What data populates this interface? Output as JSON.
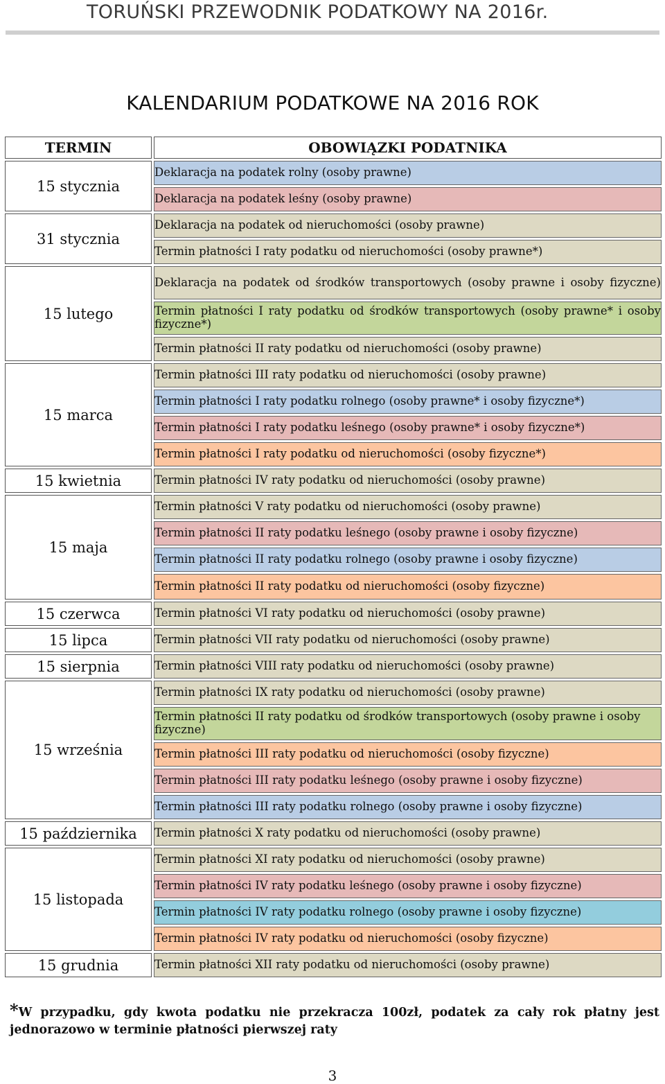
{
  "header": {
    "text": "TORUŃSKI PRZEWODNIK PODATKOWY NA 2016r."
  },
  "title": "KALENDARIUM PODATKOWE NA 2016 ROK",
  "columns": {
    "termin": "TERMIN",
    "obowiazki": "OBOWIĄZKI PODATNIKA"
  },
  "rows": [
    {
      "date": "15 stycznia",
      "items": [
        "Deklaracja na podatek rolny (osoby prawne)",
        "Deklaracja na podatek leśny (osoby prawne)"
      ]
    },
    {
      "date": "31 stycznia",
      "items": [
        "Deklaracja na podatek od nieruchomości (osoby prawne)",
        "Termin płatności I raty podatku od nieruchomości (osoby prawne*)"
      ]
    },
    {
      "date": "15 lutego",
      "items": [
        "Deklaracja na podatek od środków transportowych (osoby prawne i osoby fizyczne)",
        "Termin płatności I raty podatku od środków transportowych (osoby prawne* i osoby fizyczne*)",
        "Termin płatności II raty podatku od nieruchomości (osoby prawne)"
      ]
    },
    {
      "date": "15 marca",
      "items": [
        "Termin płatności III raty podatku od nieruchomości (osoby prawne)",
        "Termin płatności I raty podatku rolnego (osoby prawne* i osoby fizyczne*)",
        "Termin płatności I raty podatku leśnego (osoby prawne* i osoby fizyczne*)",
        "Termin płatności I raty podatku od nieruchomości (osoby fizyczne*)"
      ]
    },
    {
      "date": "15 kwietnia",
      "items": [
        "Termin płatności IV raty podatku od nieruchomości (osoby prawne)"
      ]
    },
    {
      "date": "15 maja",
      "items": [
        "Termin płatności V raty podatku od nieruchomości (osoby prawne)",
        "Termin płatności II raty podatku leśnego (osoby prawne i osoby fizyczne)",
        "Termin płatności II raty podatku rolnego (osoby prawne i osoby fizyczne)",
        "Termin płatności II raty podatku od nieruchomości (osoby fizyczne)"
      ]
    },
    {
      "date": "15 czerwca",
      "items": [
        "Termin płatności VI raty podatku od nieruchomości (osoby prawne)"
      ]
    },
    {
      "date": "15 lipca",
      "items": [
        "Termin płatności VII raty podatku od nieruchomości (osoby prawne)"
      ]
    },
    {
      "date": "15 sierpnia",
      "items": [
        "Termin płatności VIII raty podatku od nieruchomości (osoby prawne)"
      ]
    },
    {
      "date": "15 września",
      "items": [
        "Termin płatności IX raty podatku od nieruchomości (osoby prawne)",
        "Termin płatności II raty podatku od środków transportowych (osoby prawne i osoby fizyczne)",
        "Termin płatności III raty podatku od nieruchomości (osoby fizyczne)",
        "Termin płatności III raty podatku leśnego (osoby prawne i osoby fizyczne)",
        "Termin płatności III raty podatku rolnego (osoby prawne i osoby fizyczne)"
      ]
    },
    {
      "date": "15 października",
      "items": [
        "Termin płatności X raty podatku od nieruchomości (osoby prawne)"
      ]
    },
    {
      "date": "15 listopada",
      "items": [
        "Termin płatności XI raty podatku od nieruchomości (osoby prawne)",
        "Termin płatności IV raty podatku leśnego (osoby prawne i osoby fizyczne)",
        "Termin płatności IV raty podatku rolnego (osoby prawne i osoby fizyczne)",
        "Termin płatności IV raty podatku od nieruchomości (osoby fizyczne)"
      ]
    },
    {
      "date": "15 grudnia",
      "items": [
        "Termin płatności XII raty podatku od nieruchomości (osoby prawne)"
      ]
    }
  ],
  "colors": {
    "rolny": "#b9cde5",
    "lesny": "#e6b9b8",
    "nieruchomosci_prawne": "#ddd9c3",
    "transport": "#c3d69b",
    "nieruchomosci_fizyczne": "#fcc5a0",
    "rolny_listopad": "#93cddd"
  },
  "footnote": {
    "star": "*",
    "line1": "W przypadku, gdy kwota podatku nie przekracza 100zł, podatek za cały rok płatny jest",
    "line2": "jednorazowo w terminie płatności pierwszej raty"
  },
  "page_number": "3"
}
